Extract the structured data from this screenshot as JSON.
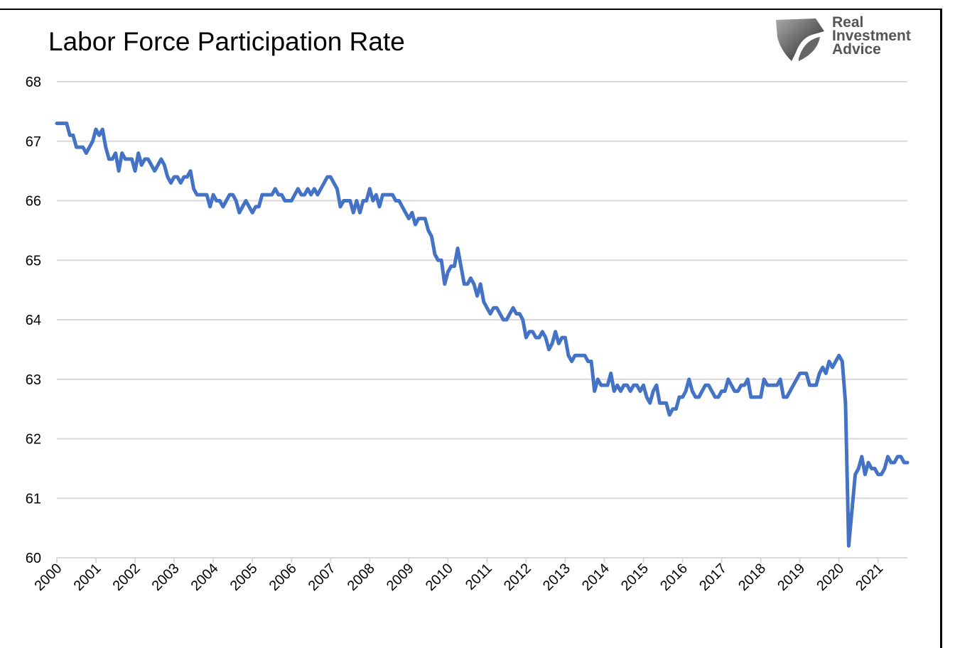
{
  "logo": {
    "lines": [
      "Real",
      "Investment",
      "Advice"
    ]
  },
  "chart_data": {
    "type": "line",
    "title": "Labor Force Participation Rate",
    "xlabel": "",
    "ylabel": "",
    "ylim": [
      60,
      68
    ],
    "yticks": [
      60,
      61,
      62,
      63,
      64,
      65,
      66,
      67,
      68
    ],
    "xticks": [
      "2000",
      "2001",
      "2002",
      "2003",
      "2004",
      "2005",
      "2006",
      "2007",
      "2008",
      "2009",
      "2010",
      "2011",
      "2012",
      "2013",
      "2014",
      "2015",
      "2016",
      "2017",
      "2018",
      "2019",
      "2020",
      "2021"
    ],
    "grid": true,
    "x_start": "2000-01",
    "x_end": "2021-10",
    "frequency": "monthly",
    "series": [
      {
        "name": "Labor Force Participation Rate",
        "color": "#4472C4",
        "values": [
          67.3,
          67.3,
          67.3,
          67.3,
          67.1,
          67.1,
          66.9,
          66.9,
          66.9,
          66.8,
          66.9,
          67.0,
          67.2,
          67.1,
          67.2,
          66.9,
          66.7,
          66.7,
          66.8,
          66.5,
          66.8,
          66.7,
          66.7,
          66.7,
          66.5,
          66.8,
          66.6,
          66.7,
          66.7,
          66.6,
          66.5,
          66.6,
          66.7,
          66.6,
          66.4,
          66.3,
          66.4,
          66.4,
          66.3,
          66.4,
          66.4,
          66.5,
          66.2,
          66.1,
          66.1,
          66.1,
          66.1,
          65.9,
          66.1,
          66.0,
          66.0,
          65.9,
          66.0,
          66.1,
          66.1,
          66.0,
          65.8,
          65.9,
          66.0,
          65.9,
          65.8,
          65.9,
          65.9,
          66.1,
          66.1,
          66.1,
          66.1,
          66.2,
          66.1,
          66.1,
          66.0,
          66.0,
          66.0,
          66.1,
          66.2,
          66.1,
          66.1,
          66.2,
          66.1,
          66.2,
          66.1,
          66.2,
          66.3,
          66.4,
          66.4,
          66.3,
          66.2,
          65.9,
          66.0,
          66.0,
          66.0,
          65.8,
          66.0,
          65.8,
          66.0,
          66.0,
          66.2,
          66.0,
          66.1,
          65.9,
          66.1,
          66.1,
          66.1,
          66.1,
          66.0,
          66.0,
          65.9,
          65.8,
          65.7,
          65.8,
          65.6,
          65.7,
          65.7,
          65.7,
          65.5,
          65.4,
          65.1,
          65.0,
          65.0,
          64.6,
          64.8,
          64.9,
          64.9,
          65.2,
          64.9,
          64.6,
          64.6,
          64.7,
          64.6,
          64.4,
          64.6,
          64.3,
          64.2,
          64.1,
          64.2,
          64.2,
          64.1,
          64.0,
          64.0,
          64.1,
          64.2,
          64.1,
          64.1,
          64.0,
          63.7,
          63.8,
          63.8,
          63.7,
          63.7,
          63.8,
          63.7,
          63.5,
          63.6,
          63.8,
          63.6,
          63.7,
          63.7,
          63.4,
          63.3,
          63.4,
          63.4,
          63.4,
          63.4,
          63.3,
          63.3,
          62.8,
          63.0,
          62.9,
          62.9,
          62.9,
          63.1,
          62.8,
          62.9,
          62.8,
          62.9,
          62.9,
          62.8,
          62.9,
          62.9,
          62.8,
          62.9,
          62.7,
          62.6,
          62.8,
          62.9,
          62.6,
          62.6,
          62.6,
          62.4,
          62.5,
          62.5,
          62.7,
          62.7,
          62.8,
          63.0,
          62.8,
          62.7,
          62.7,
          62.8,
          62.9,
          62.9,
          62.8,
          62.7,
          62.7,
          62.8,
          62.8,
          63.0,
          62.9,
          62.8,
          62.8,
          62.9,
          62.9,
          63.0,
          62.7,
          62.7,
          62.7,
          62.7,
          63.0,
          62.9,
          62.9,
          62.9,
          62.9,
          63.0,
          62.7,
          62.7,
          62.8,
          62.9,
          63.0,
          63.1,
          63.1,
          63.1,
          62.9,
          62.9,
          62.9,
          63.1,
          63.2,
          63.1,
          63.3,
          63.2,
          63.3,
          63.4,
          63.3,
          62.6,
          60.2,
          60.8,
          61.4,
          61.5,
          61.7,
          61.4,
          61.6,
          61.5,
          61.5,
          61.4,
          61.4,
          61.5,
          61.7,
          61.6,
          61.6,
          61.7,
          61.7,
          61.6,
          61.6
        ]
      }
    ]
  }
}
